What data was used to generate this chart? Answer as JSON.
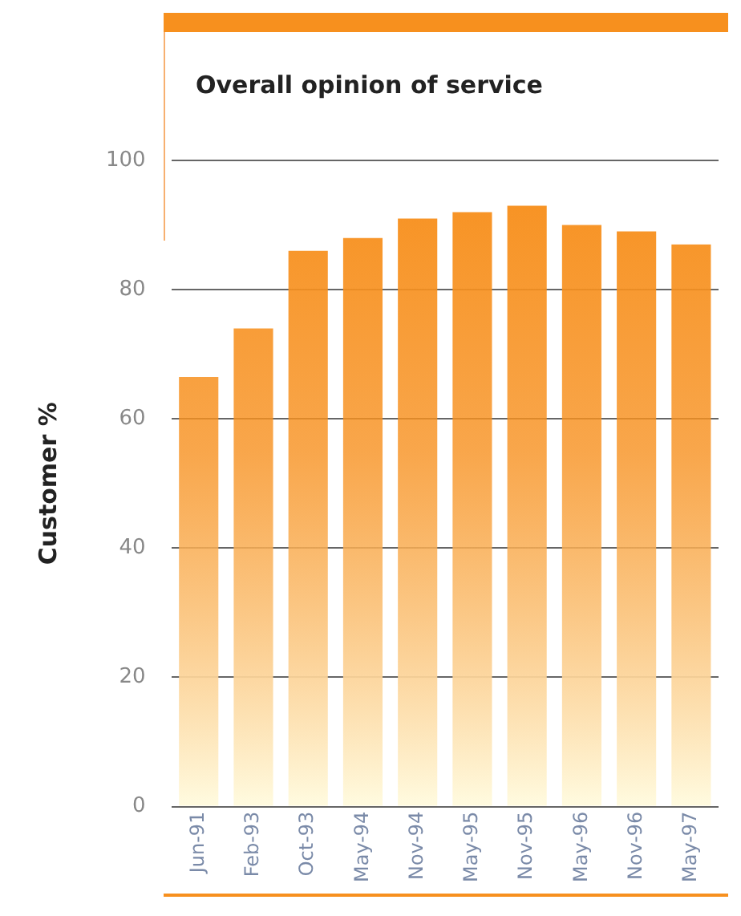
{
  "chart_data": {
    "type": "bar",
    "title": "Overall opinion of service",
    "ylabel": "Customer %",
    "categories": [
      "Jun-91",
      "Feb-93",
      "Oct-93",
      "May-94",
      "Nov-94",
      "May-95",
      "Nov-95",
      "May-96",
      "Nov-96",
      "May-97"
    ],
    "values": [
      66.5,
      74,
      86,
      88,
      91,
      92,
      93,
      90,
      89,
      87
    ],
    "color": "#f7901e",
    "ylim": [
      0,
      100
    ],
    "yticks": [
      0,
      20,
      40,
      60,
      80,
      100
    ],
    "grid": "y",
    "legend": false
  }
}
